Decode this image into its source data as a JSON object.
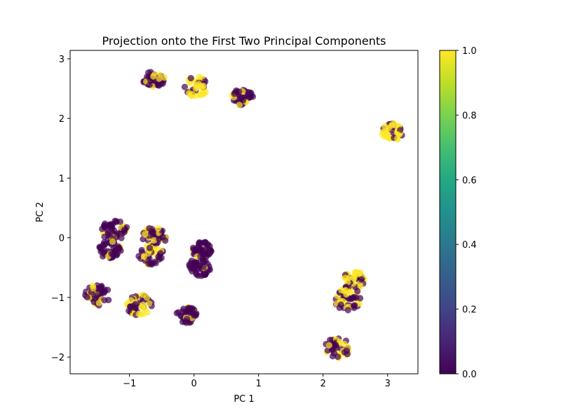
{
  "chart_data": {
    "type": "scatter",
    "title": "Projection onto the First Two Principal Components",
    "xlabel": "PC 1",
    "ylabel": "PC 2",
    "xlim": [
      -1.92,
      3.47
    ],
    "ylim": [
      -2.28,
      3.14
    ],
    "x_ticks": [
      -1,
      0,
      1,
      2,
      3
    ],
    "y_ticks": [
      -2,
      -1,
      0,
      1,
      2,
      3
    ],
    "grid": false,
    "marker_alpha": 0.7,
    "colormap": "viridis",
    "colorbar": {
      "range": [
        0.0,
        1.0
      ],
      "ticks": [
        "0.0",
        "0.2",
        "0.4",
        "0.6",
        "0.8",
        "1.0"
      ],
      "color_low": "#440154",
      "color_high": "#fde725"
    },
    "clusters": [
      {
        "cx": -0.62,
        "cy": 2.65,
        "rx": 0.17,
        "ry": 0.14,
        "n": 45,
        "frac_one": 0.3
      },
      {
        "cx": 0.03,
        "cy": 2.53,
        "rx": 0.18,
        "ry": 0.17,
        "n": 50,
        "frac_one": 0.75
      },
      {
        "cx": 0.75,
        "cy": 2.35,
        "rx": 0.17,
        "ry": 0.14,
        "n": 45,
        "frac_one": 0.15
      },
      {
        "cx": 3.08,
        "cy": 1.77,
        "rx": 0.17,
        "ry": 0.15,
        "n": 45,
        "frac_one": 0.8
      },
      {
        "cx": -1.23,
        "cy": 0.12,
        "rx": 0.2,
        "ry": 0.18,
        "n": 55,
        "frac_one": 0.15
      },
      {
        "cx": -1.3,
        "cy": -0.2,
        "rx": 0.18,
        "ry": 0.15,
        "n": 45,
        "frac_one": 0.15
      },
      {
        "cx": -0.6,
        "cy": 0.02,
        "rx": 0.2,
        "ry": 0.16,
        "n": 50,
        "frac_one": 0.3
      },
      {
        "cx": -0.66,
        "cy": -0.3,
        "rx": 0.2,
        "ry": 0.17,
        "n": 50,
        "frac_one": 0.4
      },
      {
        "cx": 0.12,
        "cy": -0.2,
        "rx": 0.15,
        "ry": 0.14,
        "n": 40,
        "frac_one": 0.1
      },
      {
        "cx": 0.08,
        "cy": -0.48,
        "rx": 0.18,
        "ry": 0.17,
        "n": 45,
        "frac_one": 0.1
      },
      {
        "cx": -1.5,
        "cy": -0.97,
        "rx": 0.2,
        "ry": 0.18,
        "n": 50,
        "frac_one": 0.2
      },
      {
        "cx": -0.85,
        "cy": -1.12,
        "rx": 0.2,
        "ry": 0.18,
        "n": 50,
        "frac_one": 0.35
      },
      {
        "cx": -0.12,
        "cy": -1.3,
        "rx": 0.17,
        "ry": 0.15,
        "n": 40,
        "frac_one": 0.15
      },
      {
        "cx": 2.48,
        "cy": -0.7,
        "rx": 0.17,
        "ry": 0.15,
        "n": 45,
        "frac_one": 0.5
      },
      {
        "cx": 2.38,
        "cy": -1.02,
        "rx": 0.2,
        "ry": 0.2,
        "n": 50,
        "frac_one": 0.5
      },
      {
        "cx": 2.22,
        "cy": -1.85,
        "rx": 0.2,
        "ry": 0.17,
        "n": 45,
        "frac_one": 0.45
      }
    ]
  }
}
